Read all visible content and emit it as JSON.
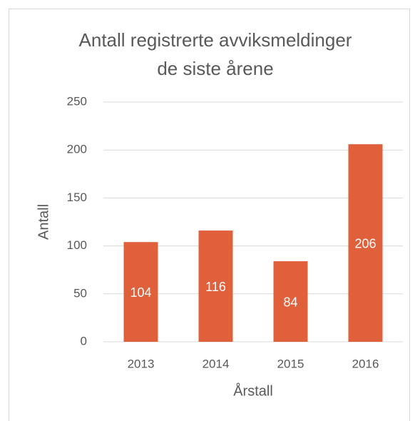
{
  "chart_data": {
    "type": "bar",
    "title": [
      "Antall registrerte avviksmeldinger",
      "de siste årene"
    ],
    "x_label": "Årstall",
    "y_label": "Antall",
    "categories": [
      "2013",
      "2014",
      "2015",
      "2016"
    ],
    "values": [
      104,
      116,
      84,
      206
    ],
    "color": "#e0603b",
    "ylim": [
      0,
      250
    ],
    "yticks": [
      0,
      50,
      100,
      150,
      200,
      250
    ],
    "grid": true
  }
}
